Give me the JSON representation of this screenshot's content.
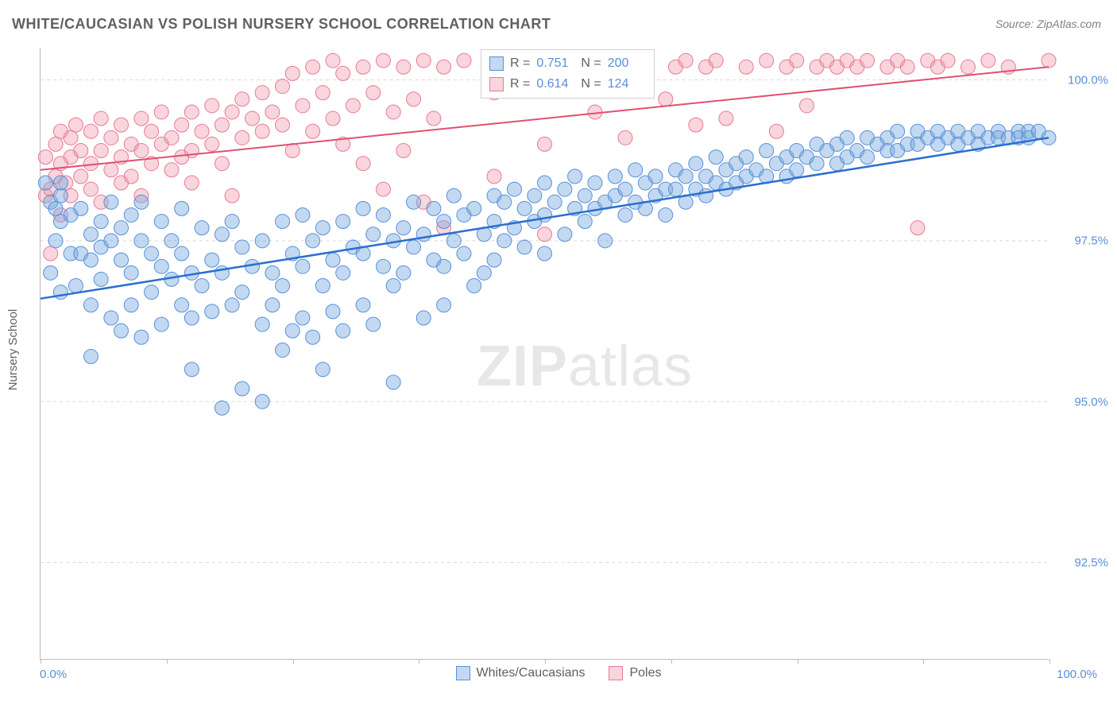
{
  "title": "WHITE/CAUCASIAN VS POLISH NURSERY SCHOOL CORRELATION CHART",
  "source": "Source: ZipAtlas.com",
  "watermark": {
    "zip": "ZIP",
    "atlas": "atlas"
  },
  "axes": {
    "y_title": "Nursery School",
    "x_min_label": "0.0%",
    "x_max_label": "100.0%",
    "x_min": 0,
    "x_max": 100,
    "y_min": 91.0,
    "y_max": 100.5,
    "y_ticks": [
      {
        "v": 92.5,
        "label": "92.5%"
      },
      {
        "v": 95.0,
        "label": "95.0%"
      },
      {
        "v": 97.5,
        "label": "97.5%"
      },
      {
        "v": 100.0,
        "label": "100.0%"
      }
    ],
    "x_tick_positions": [
      0,
      12.5,
      25,
      37.5,
      50,
      62.5,
      75,
      87.5,
      100
    ],
    "grid_color": "#d8d8d8",
    "axis_color": "#bbbbbb",
    "label_color": "#5a8fd6",
    "title_color": "#606060",
    "label_fontsize": 15
  },
  "legend": {
    "series1": "Whites/Caucasians",
    "series2": "Poles"
  },
  "stats": {
    "s1": {
      "r_label": "R =",
      "r": "0.751",
      "n_label": "N =",
      "n": "200"
    },
    "s2": {
      "r_label": "R =",
      "r": "0.614",
      "n_label": "N =",
      "n": "124"
    }
  },
  "series": {
    "blue": {
      "name": "Whites/Caucasians",
      "color_fill": "rgba(120,170,225,0.45)",
      "color_stroke": "#5a8fd6",
      "marker_radius": 9,
      "trend": {
        "x1": 0,
        "y1": 96.6,
        "x2": 100,
        "y2": 99.1,
        "color": "#2a6fd0",
        "width": 2.5
      },
      "points": [
        [
          0.5,
          98.4
        ],
        [
          1,
          98.1
        ],
        [
          1,
          97.0
        ],
        [
          1.5,
          98.0
        ],
        [
          1.5,
          97.5
        ],
        [
          2,
          98.2
        ],
        [
          2,
          98.4
        ],
        [
          2,
          97.8
        ],
        [
          2,
          96.7
        ],
        [
          3,
          97.9
        ],
        [
          3,
          97.3
        ],
        [
          3.5,
          96.8
        ],
        [
          4,
          98.0
        ],
        [
          4,
          97.3
        ],
        [
          5,
          97.6
        ],
        [
          5,
          97.2
        ],
        [
          5,
          96.5
        ],
        [
          5,
          95.7
        ],
        [
          6,
          97.8
        ],
        [
          6,
          97.4
        ],
        [
          6,
          96.9
        ],
        [
          7,
          98.1
        ],
        [
          7,
          97.5
        ],
        [
          7,
          96.3
        ],
        [
          8,
          97.7
        ],
        [
          8,
          97.2
        ],
        [
          8,
          96.1
        ],
        [
          9,
          97.9
        ],
        [
          9,
          97.0
        ],
        [
          9,
          96.5
        ],
        [
          10,
          98.1
        ],
        [
          10,
          97.5
        ],
        [
          10,
          96.0
        ],
        [
          11,
          97.3
        ],
        [
          11,
          96.7
        ],
        [
          12,
          97.8
        ],
        [
          12,
          97.1
        ],
        [
          12,
          96.2
        ],
        [
          13,
          97.5
        ],
        [
          13,
          96.9
        ],
        [
          14,
          98.0
        ],
        [
          14,
          97.3
        ],
        [
          14,
          96.5
        ],
        [
          15,
          97.0
        ],
        [
          15,
          96.3
        ],
        [
          15,
          95.5
        ],
        [
          16,
          97.7
        ],
        [
          16,
          96.8
        ],
        [
          17,
          97.2
        ],
        [
          17,
          96.4
        ],
        [
          18,
          97.6
        ],
        [
          18,
          97.0
        ],
        [
          18,
          94.9
        ],
        [
          19,
          97.8
        ],
        [
          19,
          96.5
        ],
        [
          20,
          97.4
        ],
        [
          20,
          96.7
        ],
        [
          20,
          95.2
        ],
        [
          21,
          97.1
        ],
        [
          22,
          97.5
        ],
        [
          22,
          96.2
        ],
        [
          22,
          95.0
        ],
        [
          23,
          97.0
        ],
        [
          23,
          96.5
        ],
        [
          24,
          97.8
        ],
        [
          24,
          96.8
        ],
        [
          24,
          95.8
        ],
        [
          25,
          97.3
        ],
        [
          25,
          96.1
        ],
        [
          26,
          97.9
        ],
        [
          26,
          97.1
        ],
        [
          26,
          96.3
        ],
        [
          27,
          97.5
        ],
        [
          27,
          96.0
        ],
        [
          28,
          97.7
        ],
        [
          28,
          96.8
        ],
        [
          28,
          95.5
        ],
        [
          29,
          97.2
        ],
        [
          29,
          96.4
        ],
        [
          30,
          97.8
        ],
        [
          30,
          97.0
        ],
        [
          30,
          96.1
        ],
        [
          31,
          97.4
        ],
        [
          32,
          98.0
        ],
        [
          32,
          97.3
        ],
        [
          32,
          96.5
        ],
        [
          33,
          97.6
        ],
        [
          33,
          96.2
        ],
        [
          34,
          97.9
        ],
        [
          34,
          97.1
        ],
        [
          35,
          97.5
        ],
        [
          35,
          96.8
        ],
        [
          35,
          95.3
        ],
        [
          36,
          97.7
        ],
        [
          36,
          97.0
        ],
        [
          37,
          98.1
        ],
        [
          37,
          97.4
        ],
        [
          38,
          97.6
        ],
        [
          38,
          96.3
        ],
        [
          39,
          98.0
        ],
        [
          39,
          97.2
        ],
        [
          40,
          97.8
        ],
        [
          40,
          97.1
        ],
        [
          40,
          96.5
        ],
        [
          41,
          98.2
        ],
        [
          41,
          97.5
        ],
        [
          42,
          97.9
        ],
        [
          42,
          97.3
        ],
        [
          43,
          98.0
        ],
        [
          43,
          96.8
        ],
        [
          44,
          97.6
        ],
        [
          44,
          97.0
        ],
        [
          45,
          98.2
        ],
        [
          45,
          97.8
        ],
        [
          45,
          97.2
        ],
        [
          46,
          98.1
        ],
        [
          46,
          97.5
        ],
        [
          47,
          98.3
        ],
        [
          47,
          97.7
        ],
        [
          48,
          98.0
        ],
        [
          48,
          97.4
        ],
        [
          49,
          98.2
        ],
        [
          49,
          97.8
        ],
        [
          50,
          98.4
        ],
        [
          50,
          97.9
        ],
        [
          50,
          97.3
        ],
        [
          51,
          98.1
        ],
        [
          52,
          98.3
        ],
        [
          52,
          97.6
        ],
        [
          53,
          98.5
        ],
        [
          53,
          98.0
        ],
        [
          54,
          98.2
        ],
        [
          54,
          97.8
        ],
        [
          55,
          98.4
        ],
        [
          55,
          98.0
        ],
        [
          56,
          98.1
        ],
        [
          56,
          97.5
        ],
        [
          57,
          98.5
        ],
        [
          57,
          98.2
        ],
        [
          58,
          98.3
        ],
        [
          58,
          97.9
        ],
        [
          59,
          98.6
        ],
        [
          59,
          98.1
        ],
        [
          60,
          98.4
        ],
        [
          60,
          98.0
        ],
        [
          61,
          98.5
        ],
        [
          61,
          98.2
        ],
        [
          62,
          98.3
        ],
        [
          62,
          97.9
        ],
        [
          63,
          98.6
        ],
        [
          63,
          98.3
        ],
        [
          64,
          98.5
        ],
        [
          64,
          98.1
        ],
        [
          65,
          98.7
        ],
        [
          65,
          98.3
        ],
        [
          66,
          98.5
        ],
        [
          66,
          98.2
        ],
        [
          67,
          98.8
        ],
        [
          67,
          98.4
        ],
        [
          68,
          98.6
        ],
        [
          68,
          98.3
        ],
        [
          69,
          98.7
        ],
        [
          69,
          98.4
        ],
        [
          70,
          98.8
        ],
        [
          70,
          98.5
        ],
        [
          71,
          98.6
        ],
        [
          72,
          98.9
        ],
        [
          72,
          98.5
        ],
        [
          73,
          98.7
        ],
        [
          74,
          98.8
        ],
        [
          74,
          98.5
        ],
        [
          75,
          98.9
        ],
        [
          75,
          98.6
        ],
        [
          76,
          98.8
        ],
        [
          77,
          99.0
        ],
        [
          77,
          98.7
        ],
        [
          78,
          98.9
        ],
        [
          79,
          99.0
        ],
        [
          79,
          98.7
        ],
        [
          80,
          99.1
        ],
        [
          80,
          98.8
        ],
        [
          81,
          98.9
        ],
        [
          82,
          99.1
        ],
        [
          82,
          98.8
        ],
        [
          83,
          99.0
        ],
        [
          84,
          99.1
        ],
        [
          84,
          98.9
        ],
        [
          85,
          99.2
        ],
        [
          85,
          98.9
        ],
        [
          86,
          99.0
        ],
        [
          87,
          99.2
        ],
        [
          87,
          99.0
        ],
        [
          88,
          99.1
        ],
        [
          89,
          99.2
        ],
        [
          89,
          99.0
        ],
        [
          90,
          99.1
        ],
        [
          91,
          99.2
        ],
        [
          91,
          99.0
        ],
        [
          92,
          99.1
        ],
        [
          93,
          99.2
        ],
        [
          93,
          99.0
        ],
        [
          94,
          99.1
        ],
        [
          95,
          99.2
        ],
        [
          95,
          99.1
        ],
        [
          96,
          99.1
        ],
        [
          97,
          99.2
        ],
        [
          97,
          99.1
        ],
        [
          98,
          99.2
        ],
        [
          98,
          99.1
        ],
        [
          99,
          99.2
        ],
        [
          100,
          99.1
        ]
      ]
    },
    "pink": {
      "name": "Poles",
      "color_fill": "rgba(240,150,170,0.40)",
      "color_stroke": "#e77a95",
      "marker_radius": 9,
      "trend": {
        "x1": 0,
        "y1": 98.6,
        "x2": 100,
        "y2": 100.2,
        "color": "#e05070",
        "width": 2
      },
      "points": [
        [
          0.5,
          98.8
        ],
        [
          0.5,
          98.2
        ],
        [
          1,
          98.3
        ],
        [
          1,
          97.3
        ],
        [
          1.5,
          99.0
        ],
        [
          1.5,
          98.5
        ],
        [
          2,
          99.2
        ],
        [
          2,
          98.7
        ],
        [
          2,
          97.9
        ],
        [
          2.5,
          98.4
        ],
        [
          3,
          99.1
        ],
        [
          3,
          98.8
        ],
        [
          3,
          98.2
        ],
        [
          3.5,
          99.3
        ],
        [
          4,
          98.9
        ],
        [
          4,
          98.5
        ],
        [
          5,
          99.2
        ],
        [
          5,
          98.7
        ],
        [
          5,
          98.3
        ],
        [
          6,
          99.4
        ],
        [
          6,
          98.9
        ],
        [
          6,
          98.1
        ],
        [
          7,
          99.1
        ],
        [
          7,
          98.6
        ],
        [
          8,
          99.3
        ],
        [
          8,
          98.8
        ],
        [
          8,
          98.4
        ],
        [
          9,
          99.0
        ],
        [
          9,
          98.5
        ],
        [
          10,
          99.4
        ],
        [
          10,
          98.9
        ],
        [
          10,
          98.2
        ],
        [
          11,
          99.2
        ],
        [
          11,
          98.7
        ],
        [
          12,
          99.5
        ],
        [
          12,
          99.0
        ],
        [
          13,
          99.1
        ],
        [
          13,
          98.6
        ],
        [
          14,
          99.3
        ],
        [
          14,
          98.8
        ],
        [
          15,
          99.5
        ],
        [
          15,
          98.9
        ],
        [
          15,
          98.4
        ],
        [
          16,
          99.2
        ],
        [
          17,
          99.6
        ],
        [
          17,
          99.0
        ],
        [
          18,
          99.3
        ],
        [
          18,
          98.7
        ],
        [
          19,
          99.5
        ],
        [
          19,
          98.2
        ],
        [
          20,
          99.7
        ],
        [
          20,
          99.1
        ],
        [
          21,
          99.4
        ],
        [
          22,
          99.8
        ],
        [
          22,
          99.2
        ],
        [
          23,
          99.5
        ],
        [
          24,
          99.9
        ],
        [
          24,
          99.3
        ],
        [
          25,
          100.1
        ],
        [
          25,
          98.9
        ],
        [
          26,
          99.6
        ],
        [
          27,
          100.2
        ],
        [
          27,
          99.2
        ],
        [
          28,
          99.8
        ],
        [
          29,
          100.3
        ],
        [
          29,
          99.4
        ],
        [
          30,
          100.1
        ],
        [
          30,
          99.0
        ],
        [
          31,
          99.6
        ],
        [
          32,
          100.2
        ],
        [
          32,
          98.7
        ],
        [
          33,
          99.8
        ],
        [
          34,
          100.3
        ],
        [
          34,
          98.3
        ],
        [
          35,
          99.5
        ],
        [
          36,
          100.2
        ],
        [
          36,
          98.9
        ],
        [
          37,
          99.7
        ],
        [
          38,
          100.3
        ],
        [
          38,
          98.1
        ],
        [
          39,
          99.4
        ],
        [
          40,
          100.2
        ],
        [
          40,
          97.7
        ],
        [
          42,
          100.3
        ],
        [
          45,
          99.8
        ],
        [
          45,
          98.5
        ],
        [
          48,
          100.2
        ],
        [
          50,
          99.0
        ],
        [
          50,
          97.6
        ],
        [
          52,
          100.3
        ],
        [
          55,
          99.5
        ],
        [
          56,
          100.2
        ],
        [
          58,
          99.1
        ],
        [
          60,
          100.3
        ],
        [
          62,
          99.7
        ],
        [
          63,
          100.2
        ],
        [
          64,
          100.3
        ],
        [
          65,
          99.3
        ],
        [
          66,
          100.2
        ],
        [
          67,
          100.3
        ],
        [
          68,
          99.4
        ],
        [
          70,
          100.2
        ],
        [
          72,
          100.3
        ],
        [
          73,
          99.2
        ],
        [
          74,
          100.2
        ],
        [
          75,
          100.3
        ],
        [
          76,
          99.6
        ],
        [
          77,
          100.2
        ],
        [
          78,
          100.3
        ],
        [
          79,
          100.2
        ],
        [
          80,
          100.3
        ],
        [
          81,
          100.2
        ],
        [
          82,
          100.3
        ],
        [
          84,
          100.2
        ],
        [
          85,
          100.3
        ],
        [
          86,
          100.2
        ],
        [
          87,
          97.7
        ],
        [
          88,
          100.3
        ],
        [
          89,
          100.2
        ],
        [
          90,
          100.3
        ],
        [
          92,
          100.2
        ],
        [
          94,
          100.3
        ],
        [
          96,
          100.2
        ],
        [
          100,
          100.3
        ]
      ]
    }
  }
}
